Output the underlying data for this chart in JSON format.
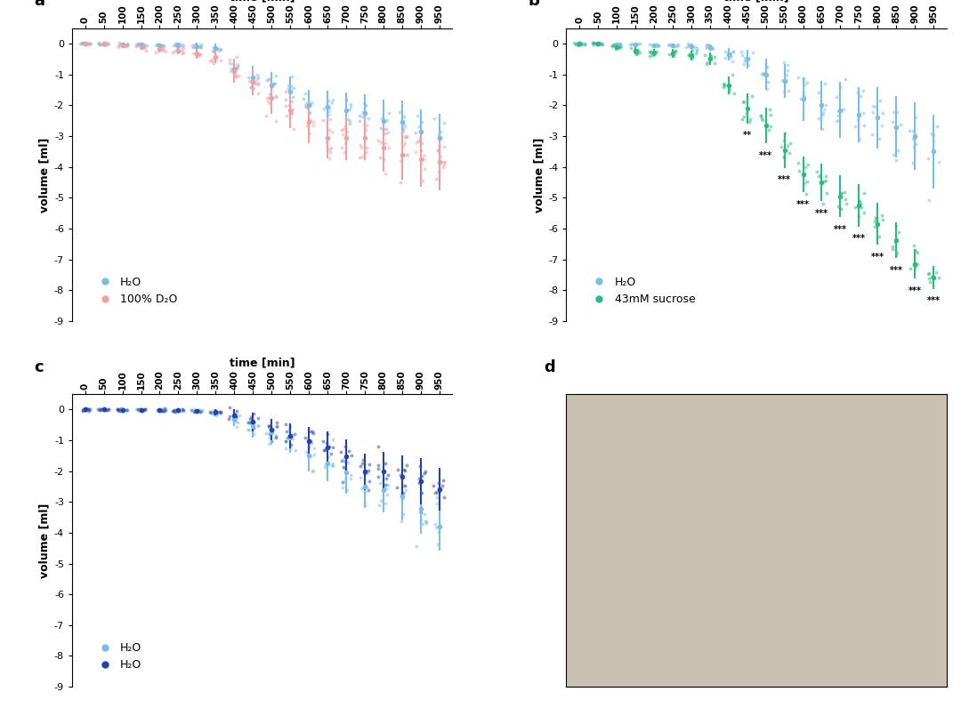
{
  "time_points": [
    0,
    50,
    100,
    150,
    200,
    250,
    300,
    350,
    400,
    450,
    500,
    550,
    600,
    650,
    700,
    750,
    800,
    850,
    900,
    950
  ],
  "panel_a": {
    "label": "a",
    "water_color": "#7abde8",
    "d2o_color": "#f0a0a0",
    "water_mean": [
      0,
      0,
      -0.02,
      -0.03,
      -0.05,
      -0.05,
      -0.08,
      -0.15,
      -0.82,
      -1.1,
      -1.35,
      -1.55,
      -2.0,
      -2.05,
      -2.15,
      -2.25,
      -2.5,
      -2.55,
      -2.85,
      -3.05
    ],
    "water_err": [
      0.01,
      0.02,
      0.04,
      0.05,
      0.06,
      0.07,
      0.1,
      0.15,
      0.28,
      0.38,
      0.42,
      0.48,
      0.5,
      0.52,
      0.58,
      0.62,
      0.68,
      0.72,
      0.72,
      0.78
    ],
    "d2o_mean": [
      0,
      0,
      -0.05,
      -0.1,
      -0.18,
      -0.22,
      -0.32,
      -0.42,
      -0.88,
      -1.25,
      -1.75,
      -2.15,
      -2.55,
      -3.05,
      -3.05,
      -3.05,
      -3.38,
      -3.6,
      -3.75,
      -3.85
    ],
    "d2o_err": [
      0.01,
      0.02,
      0.06,
      0.09,
      0.1,
      0.13,
      0.16,
      0.22,
      0.38,
      0.42,
      0.52,
      0.58,
      0.68,
      0.68,
      0.72,
      0.72,
      0.78,
      0.8,
      0.88,
      0.92
    ],
    "legend1": "H₂O",
    "legend2": "100% D₂O",
    "n_scatter": 8
  },
  "panel_b": {
    "label": "b",
    "water_color": "#7abde8",
    "sucrose_color": "#2dba80",
    "water_mean": [
      0,
      0,
      -0.02,
      -0.02,
      -0.05,
      -0.05,
      -0.08,
      -0.12,
      -0.35,
      -0.5,
      -1.0,
      -1.2,
      -1.8,
      -2.0,
      -2.15,
      -2.3,
      -2.4,
      -2.7,
      -3.0,
      -3.5
    ],
    "water_err": [
      0.01,
      0.02,
      0.02,
      0.03,
      0.05,
      0.05,
      0.08,
      0.1,
      0.2,
      0.3,
      0.5,
      0.55,
      0.7,
      0.8,
      0.9,
      0.9,
      1.0,
      1.0,
      1.1,
      1.2
    ],
    "sucrose_mean": [
      0,
      0,
      -0.1,
      -0.22,
      -0.28,
      -0.32,
      -0.38,
      -0.48,
      -1.35,
      -2.1,
      -2.65,
      -3.45,
      -4.25,
      -4.5,
      -4.95,
      -5.25,
      -5.85,
      -6.38,
      -7.15,
      -7.58
    ],
    "sucrose_err": [
      0.01,
      0.02,
      0.1,
      0.12,
      0.12,
      0.15,
      0.15,
      0.2,
      0.3,
      0.48,
      0.58,
      0.58,
      0.58,
      0.62,
      0.68,
      0.68,
      0.68,
      0.58,
      0.48,
      0.38
    ],
    "sig_double_idx": [
      9
    ],
    "sig_triple_idx": [
      10,
      11,
      12,
      13,
      14,
      15,
      16,
      17,
      18,
      19
    ],
    "legend1": "H₂O",
    "legend2": "43mM sucrose",
    "n_scatter": 8
  },
  "panel_c": {
    "label": "c",
    "light_color": "#7abde8",
    "dark_color": "#2244aa",
    "light_mean": [
      0,
      0,
      -0.01,
      -0.01,
      -0.02,
      -0.03,
      -0.05,
      -0.08,
      -0.3,
      -0.55,
      -0.75,
      -0.92,
      -1.5,
      -1.75,
      -2.05,
      -2.5,
      -2.62,
      -2.82,
      -3.22,
      -3.8
    ],
    "light_err": [
      0.01,
      0.01,
      0.02,
      0.02,
      0.03,
      0.04,
      0.06,
      0.1,
      0.25,
      0.35,
      0.4,
      0.48,
      0.5,
      0.58,
      0.68,
      0.68,
      0.72,
      0.78,
      0.82,
      0.78
    ],
    "dark_mean": [
      0,
      0,
      -0.01,
      -0.01,
      -0.02,
      -0.03,
      -0.05,
      -0.08,
      -0.2,
      -0.4,
      -0.65,
      -0.85,
      -1.02,
      -1.22,
      -1.52,
      -2.02,
      -2.02,
      -2.18,
      -2.32,
      -2.58
    ],
    "dark_err": [
      0.01,
      0.01,
      0.02,
      0.02,
      0.03,
      0.04,
      0.06,
      0.1,
      0.2,
      0.3,
      0.35,
      0.4,
      0.45,
      0.5,
      0.55,
      0.6,
      0.65,
      0.7,
      0.75,
      0.7
    ],
    "legend1": "H₂O",
    "legend2": "H₂O",
    "n_scatter": 8
  },
  "ylim": [
    -9,
    0.5
  ],
  "yticks": [
    0,
    -1,
    -2,
    -3,
    -4,
    -5,
    -6,
    -7,
    -8,
    -9
  ],
  "bg_color": "#ffffff"
}
